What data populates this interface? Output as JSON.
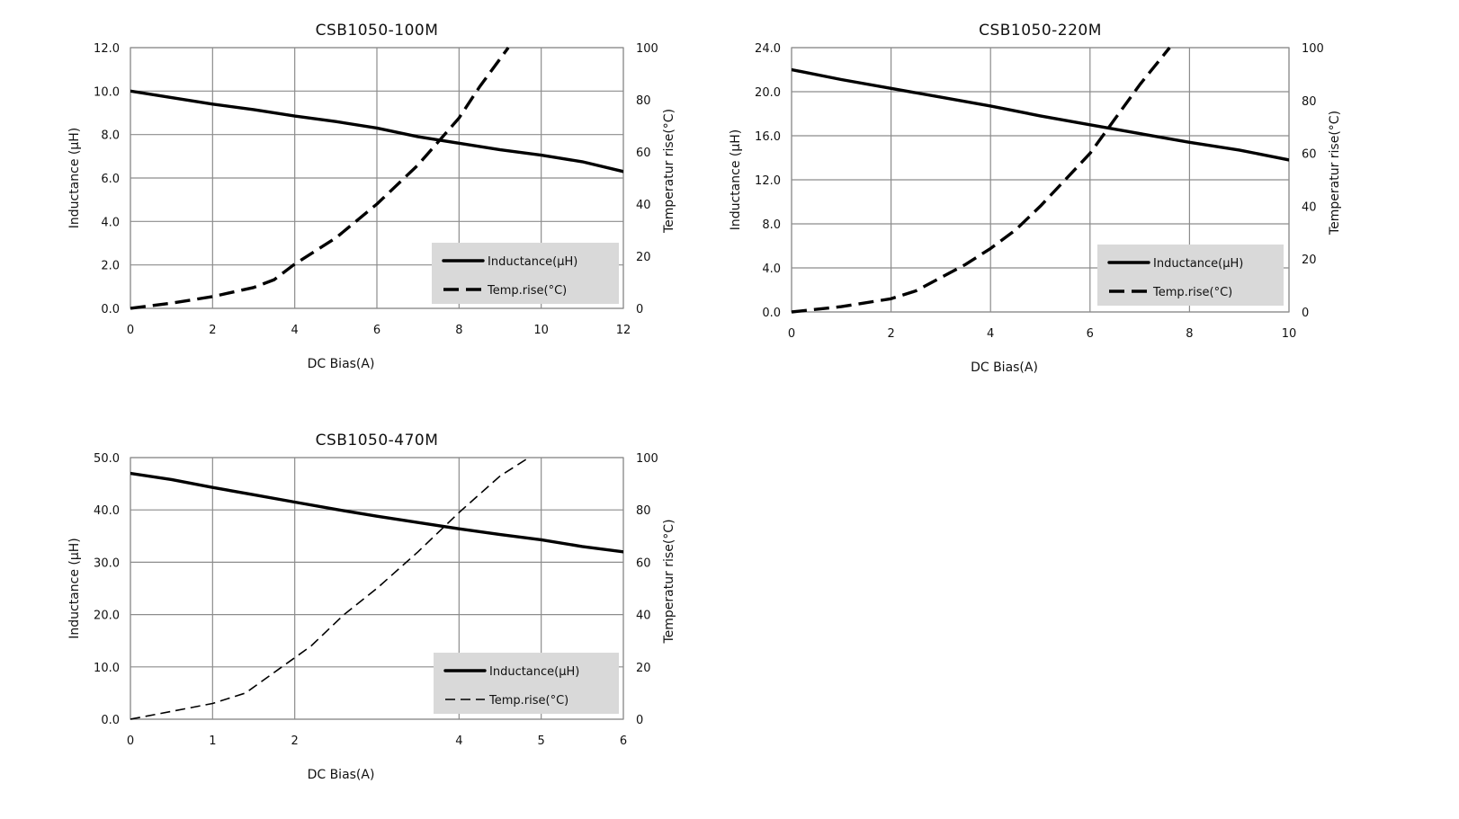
{
  "chart_data": [
    {
      "type": "line",
      "title": "CSB1050-100M",
      "xlabel": "DC Bias(A)",
      "ylabel": "Inductance (μH)",
      "y2label": "Temperatur rise(°C)",
      "xlim": [
        0,
        12
      ],
      "ylim": [
        0,
        12
      ],
      "y2lim": [
        0,
        100
      ],
      "xticks": [
        "0",
        "2",
        "4",
        "6",
        "8",
        "10",
        "12"
      ],
      "yticks": [
        "0.0",
        "2.0",
        "4.0",
        "6.0",
        "8.0",
        "10.0",
        "12.0"
      ],
      "y2ticks": [
        "0",
        "20",
        "40",
        "60",
        "80",
        "100"
      ],
      "grid": true,
      "legend_position": "bottom-right",
      "series": [
        {
          "name": "Inductance(μH)",
          "axis": "left",
          "style": "solid",
          "x": [
            0,
            1,
            2,
            3,
            4,
            5,
            6,
            7,
            8,
            9,
            10,
            11,
            12
          ],
          "values": [
            10.0,
            9.7,
            9.4,
            9.15,
            8.85,
            8.6,
            8.3,
            7.9,
            7.6,
            7.3,
            7.05,
            6.75,
            6.3
          ]
        },
        {
          "name": "Temp.rise(°C)",
          "axis": "right",
          "style": "dashed",
          "x": [
            0,
            1,
            2,
            3,
            3.5,
            4,
            5,
            6,
            7,
            8,
            8.5,
            9.2
          ],
          "values": [
            0,
            2,
            4.5,
            8,
            11,
            17,
            27,
            40,
            55,
            73,
            85,
            100
          ]
        }
      ]
    },
    {
      "type": "line",
      "title": "CSB1050-220M",
      "xlabel": "DC Bias(A)",
      "ylabel": "Inductance (μH)",
      "y2label": "Temperatur rise(°C)",
      "xlim": [
        0,
        10
      ],
      "ylim": [
        0,
        24
      ],
      "y2lim": [
        0,
        100
      ],
      "xticks": [
        "0",
        "2",
        "4",
        "6",
        "8",
        "10"
      ],
      "yticks": [
        "0.0",
        "4.0",
        "8.0",
        "12.0",
        "16.0",
        "20.0",
        "24.0"
      ],
      "y2ticks": [
        "0",
        "20",
        "40",
        "60",
        "80",
        "100"
      ],
      "grid": true,
      "legend_position": "bottom-right",
      "series": [
        {
          "name": "Inductance(μH)",
          "axis": "left",
          "style": "solid",
          "x": [
            0,
            1,
            2,
            3,
            4,
            5,
            6,
            7,
            8,
            9,
            10
          ],
          "values": [
            22.0,
            21.1,
            20.3,
            19.5,
            18.7,
            17.8,
            17.0,
            16.2,
            15.4,
            14.7,
            13.8
          ]
        },
        {
          "name": "Temp.rise(°C)",
          "axis": "right",
          "style": "dashed",
          "x": [
            0,
            1,
            2,
            2.5,
            3,
            3.5,
            4,
            4.5,
            5,
            5.5,
            6,
            6.5,
            7,
            7.6
          ],
          "values": [
            0,
            2,
            5,
            8,
            13,
            18,
            24,
            31,
            40,
            50,
            60,
            73,
            86,
            100
          ]
        }
      ]
    },
    {
      "type": "line",
      "title": "CSB1050-470M",
      "xlabel": "DC Bias(A)",
      "ylabel": "Inductance (μH)",
      "y2label": "Temperatur rise(°C)",
      "xlim": [
        0,
        6
      ],
      "ylim": [
        0,
        50
      ],
      "y2lim": [
        0,
        100
      ],
      "xticks": [
        "0",
        "1",
        "2",
        "4",
        "5",
        "6"
      ],
      "yticks": [
        "0.0",
        "10.0",
        "20.0",
        "30.0",
        "40.0",
        "50.0"
      ],
      "y2ticks": [
        "0",
        "20",
        "40",
        "60",
        "80",
        "100"
      ],
      "grid": true,
      "legend_position": "bottom-right",
      "series": [
        {
          "name": "Inductance(μH)",
          "axis": "left",
          "style": "solid",
          "x": [
            0,
            0.5,
            1,
            1.5,
            2,
            2.5,
            3,
            3.5,
            4,
            4.5,
            5,
            5.5,
            6
          ],
          "values": [
            47.0,
            45.8,
            44.3,
            42.9,
            41.5,
            40.1,
            38.8,
            37.6,
            36.4,
            35.3,
            34.3,
            33.0,
            32.0
          ]
        },
        {
          "name": "Temp.rise(°C)",
          "axis": "right",
          "style": "dashed-thin",
          "x": [
            0,
            0.5,
            1,
            1.4,
            1.8,
            2.2,
            2.6,
            3.0,
            3.5,
            4.0,
            4.5,
            4.85
          ],
          "values": [
            0,
            3,
            6,
            10,
            19,
            28,
            40,
            50,
            64,
            79,
            93,
            100
          ]
        }
      ]
    }
  ]
}
